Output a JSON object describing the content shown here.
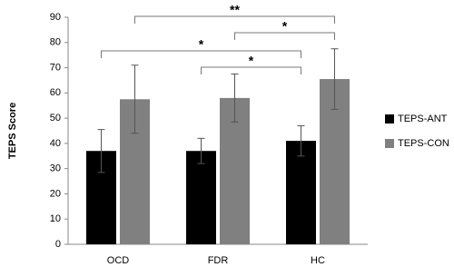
{
  "chart_data": {
    "type": "bar",
    "y_label": "TEPS Score",
    "categories": [
      "OCD",
      "FDR",
      "HC"
    ],
    "series": [
      {
        "name": "TEPS-ANT",
        "color": "#000000",
        "values": [
          37,
          37,
          41
        ],
        "errors": [
          8.5,
          5,
          6
        ]
      },
      {
        "name": "TEPS-CON",
        "color": "#808080",
        "values": [
          57.5,
          58,
          65.5
        ],
        "errors": [
          13.5,
          9.5,
          12
        ]
      }
    ],
    "ylim": [
      0,
      90
    ],
    "yticks": [
      0,
      10,
      20,
      30,
      40,
      50,
      60,
      70,
      80,
      90
    ],
    "legend": "right",
    "annotations": [
      "**",
      "*",
      "*",
      "*"
    ]
  }
}
